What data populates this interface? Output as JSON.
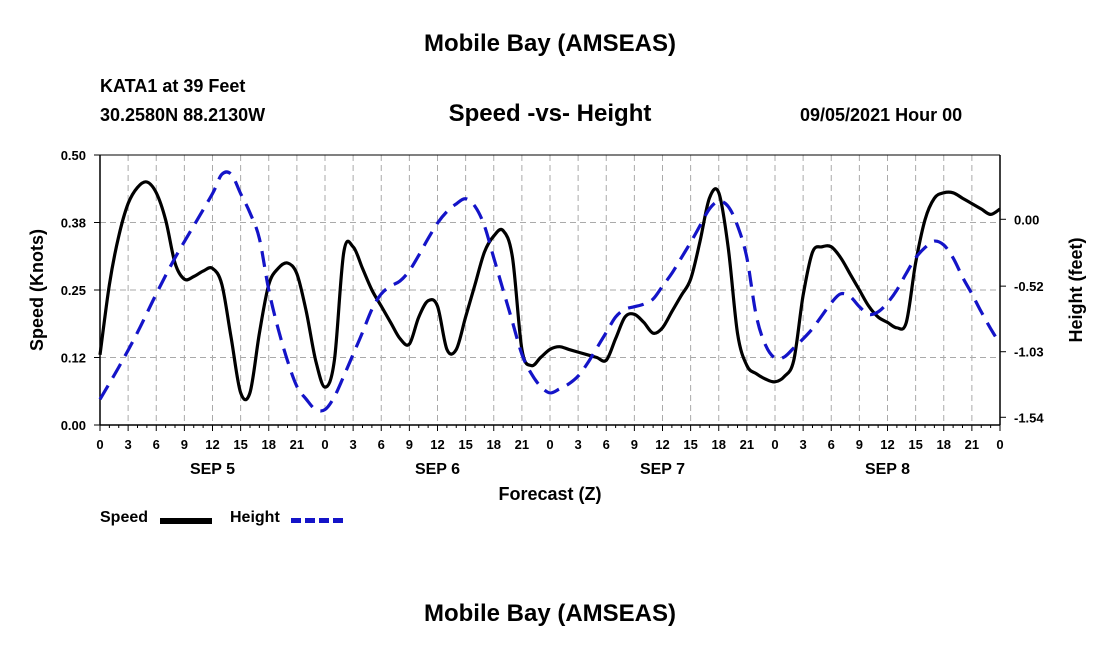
{
  "header": {
    "title": "Mobile Bay (AMSEAS)",
    "station": "KATA1 at 39 Feet",
    "coords": "30.2580N  88.2130W",
    "chart_title": "Speed -vs- Height",
    "datetime": "09/05/2021 Hour 00"
  },
  "footer": {
    "title": "Mobile Bay (AMSEAS)"
  },
  "legend": {
    "speed_label": "Speed",
    "height_label": "Height"
  },
  "colors": {
    "speed": "#000000",
    "height": "#1414c8",
    "grid": "#aaaaaa"
  },
  "chart_data": {
    "type": "line",
    "title": "Speed -vs- Height",
    "xlabel": "Forecast (Z)",
    "ylabel": "Speed (Knots)",
    "ylabel_right": "Height (feet)",
    "xlim": [
      0,
      96
    ],
    "ylim": [
      0,
      0.5
    ],
    "ylim_right": [
      -1.6,
      0.5
    ],
    "yticks": [
      0.0,
      0.125,
      0.25,
      0.375,
      0.5
    ],
    "ytick_labels": [
      "0.00",
      "0.12",
      "0.25",
      "0.38",
      "0.50"
    ],
    "yticks_right": [
      -1.54,
      -1.03,
      -0.52,
      0.0
    ],
    "ytick_labels_right": [
      "-1.54",
      "-1.03",
      "-0.52",
      "0.00"
    ],
    "xticks": [
      0,
      3,
      6,
      9,
      12,
      15,
      18,
      21,
      24,
      27,
      30,
      33,
      36,
      39,
      42,
      45,
      48,
      51,
      54,
      57,
      60,
      63,
      66,
      69,
      72,
      75,
      78,
      81,
      84,
      87,
      90,
      93,
      96
    ],
    "xtick_labels": [
      "0",
      "3",
      "6",
      "9",
      "12",
      "15",
      "18",
      "21",
      "0",
      "3",
      "6",
      "9",
      "12",
      "15",
      "18",
      "21",
      "0",
      "3",
      "6",
      "9",
      "12",
      "15",
      "18",
      "21",
      "0",
      "3",
      "6",
      "9",
      "12",
      "15",
      "18",
      "21",
      "0"
    ],
    "day_labels": [
      {
        "label": "SEP 5",
        "x": 12
      },
      {
        "label": "SEP 6",
        "x": 36
      },
      {
        "label": "SEP 7",
        "x": 60
      },
      {
        "label": "SEP 8",
        "x": 84
      }
    ],
    "grid": true,
    "series": [
      {
        "name": "Speed",
        "axis": "left",
        "style": "solid",
        "points": [
          [
            0,
            0.13
          ],
          [
            1,
            0.26
          ],
          [
            2,
            0.35
          ],
          [
            3,
            0.41
          ],
          [
            4,
            0.44
          ],
          [
            5,
            0.45
          ],
          [
            6,
            0.43
          ],
          [
            7,
            0.38
          ],
          [
            8,
            0.3
          ],
          [
            9,
            0.27
          ],
          [
            10,
            0.275
          ],
          [
            11,
            0.285
          ],
          [
            12,
            0.29
          ],
          [
            13,
            0.26
          ],
          [
            14,
            0.16
          ],
          [
            15,
            0.06
          ],
          [
            16,
            0.06
          ],
          [
            17,
            0.17
          ],
          [
            18,
            0.26
          ],
          [
            19,
            0.29
          ],
          [
            20,
            0.3
          ],
          [
            21,
            0.28
          ],
          [
            22,
            0.21
          ],
          [
            23,
            0.12
          ],
          [
            24,
            0.07
          ],
          [
            25,
            0.12
          ],
          [
            26,
            0.32
          ],
          [
            27,
            0.33
          ],
          [
            28,
            0.29
          ],
          [
            29,
            0.25
          ],
          [
            30,
            0.22
          ],
          [
            31,
            0.19
          ],
          [
            32,
            0.16
          ],
          [
            33,
            0.15
          ],
          [
            34,
            0.2
          ],
          [
            35,
            0.23
          ],
          [
            36,
            0.22
          ],
          [
            37,
            0.14
          ],
          [
            38,
            0.14
          ],
          [
            39,
            0.2
          ],
          [
            40,
            0.26
          ],
          [
            41,
            0.32
          ],
          [
            42,
            0.35
          ],
          [
            43,
            0.36
          ],
          [
            44,
            0.31
          ],
          [
            45,
            0.14
          ],
          [
            46,
            0.11
          ],
          [
            47,
            0.125
          ],
          [
            48,
            0.14
          ],
          [
            49,
            0.145
          ],
          [
            50,
            0.14
          ],
          [
            51,
            0.135
          ],
          [
            52,
            0.13
          ],
          [
            53,
            0.125
          ],
          [
            54,
            0.12
          ],
          [
            55,
            0.16
          ],
          [
            56,
            0.2
          ],
          [
            57,
            0.205
          ],
          [
            58,
            0.19
          ],
          [
            59,
            0.17
          ],
          [
            60,
            0.18
          ],
          [
            61,
            0.21
          ],
          [
            62,
            0.24
          ],
          [
            63,
            0.27
          ],
          [
            64,
            0.34
          ],
          [
            65,
            0.42
          ],
          [
            66,
            0.43
          ],
          [
            67,
            0.33
          ],
          [
            68,
            0.17
          ],
          [
            69,
            0.11
          ],
          [
            70,
            0.095
          ],
          [
            71,
            0.085
          ],
          [
            72,
            0.08
          ],
          [
            73,
            0.09
          ],
          [
            74,
            0.12
          ],
          [
            75,
            0.24
          ],
          [
            76,
            0.32
          ],
          [
            77,
            0.33
          ],
          [
            78,
            0.33
          ],
          [
            79,
            0.31
          ],
          [
            80,
            0.28
          ],
          [
            81,
            0.25
          ],
          [
            82,
            0.22
          ],
          [
            83,
            0.2
          ],
          [
            84,
            0.19
          ],
          [
            85,
            0.18
          ],
          [
            86,
            0.19
          ],
          [
            87,
            0.3
          ],
          [
            88,
            0.38
          ],
          [
            89,
            0.42
          ],
          [
            90,
            0.43
          ],
          [
            91,
            0.43
          ],
          [
            92,
            0.42
          ],
          [
            93,
            0.41
          ],
          [
            94,
            0.4
          ],
          [
            95,
            0.39
          ],
          [
            96,
            0.4
          ]
        ]
      },
      {
        "name": "Height",
        "axis": "right",
        "style": "dashed",
        "points": [
          [
            0,
            -1.4
          ],
          [
            2,
            -1.15
          ],
          [
            4,
            -0.88
          ],
          [
            6,
            -0.58
          ],
          [
            8,
            -0.3
          ],
          [
            10,
            -0.05
          ],
          [
            12,
            0.2
          ],
          [
            13,
            0.35
          ],
          [
            14,
            0.35
          ],
          [
            15,
            0.2
          ],
          [
            16,
            0.05
          ],
          [
            17,
            -0.15
          ],
          [
            18,
            -0.55
          ],
          [
            19,
            -0.85
          ],
          [
            20,
            -1.1
          ],
          [
            21,
            -1.3
          ],
          [
            22,
            -1.4
          ],
          [
            23,
            -1.48
          ],
          [
            24,
            -1.48
          ],
          [
            25,
            -1.38
          ],
          [
            26,
            -1.22
          ],
          [
            27,
            -1.05
          ],
          [
            28,
            -0.88
          ],
          [
            29,
            -0.7
          ],
          [
            30,
            -0.58
          ],
          [
            31,
            -0.52
          ],
          [
            32,
            -0.48
          ],
          [
            33,
            -0.4
          ],
          [
            34,
            -0.28
          ],
          [
            35,
            -0.15
          ],
          [
            36,
            -0.03
          ],
          [
            37,
            0.06
          ],
          [
            38,
            0.12
          ],
          [
            39,
            0.16
          ],
          [
            40,
            0.1
          ],
          [
            41,
            -0.05
          ],
          [
            42,
            -0.3
          ],
          [
            43,
            -0.55
          ],
          [
            44,
            -0.8
          ],
          [
            45,
            -1.05
          ],
          [
            46,
            -1.2
          ],
          [
            47,
            -1.3
          ],
          [
            48,
            -1.35
          ],
          [
            49,
            -1.32
          ],
          [
            50,
            -1.28
          ],
          [
            51,
            -1.22
          ],
          [
            52,
            -1.12
          ],
          [
            53,
            -1.0
          ],
          [
            54,
            -0.88
          ],
          [
            55,
            -0.76
          ],
          [
            56,
            -0.7
          ],
          [
            57,
            -0.68
          ],
          [
            58,
            -0.66
          ],
          [
            59,
            -0.62
          ],
          [
            60,
            -0.52
          ],
          [
            61,
            -0.42
          ],
          [
            62,
            -0.3
          ],
          [
            63,
            -0.18
          ],
          [
            64,
            -0.05
          ],
          [
            65,
            0.08
          ],
          [
            66,
            0.14
          ],
          [
            67,
            0.1
          ],
          [
            68,
            -0.05
          ],
          [
            69,
            -0.3
          ],
          [
            70,
            -0.75
          ],
          [
            71,
            -0.98
          ],
          [
            72,
            -1.08
          ],
          [
            73,
            -1.07
          ],
          [
            74,
            -1.0
          ],
          [
            75,
            -0.93
          ],
          [
            76,
            -0.85
          ],
          [
            77,
            -0.75
          ],
          [
            78,
            -0.65
          ],
          [
            79,
            -0.58
          ],
          [
            80,
            -0.6
          ],
          [
            81,
            -0.68
          ],
          [
            82,
            -0.74
          ],
          [
            83,
            -0.72
          ],
          [
            84,
            -0.65
          ],
          [
            85,
            -0.55
          ],
          [
            86,
            -0.42
          ],
          [
            87,
            -0.3
          ],
          [
            88,
            -0.22
          ],
          [
            89,
            -0.17
          ],
          [
            90,
            -0.2
          ],
          [
            91,
            -0.3
          ],
          [
            92,
            -0.45
          ],
          [
            93,
            -0.58
          ],
          [
            94,
            -0.72
          ],
          [
            95,
            -0.85
          ],
          [
            96,
            -0.97
          ]
        ]
      }
    ]
  }
}
